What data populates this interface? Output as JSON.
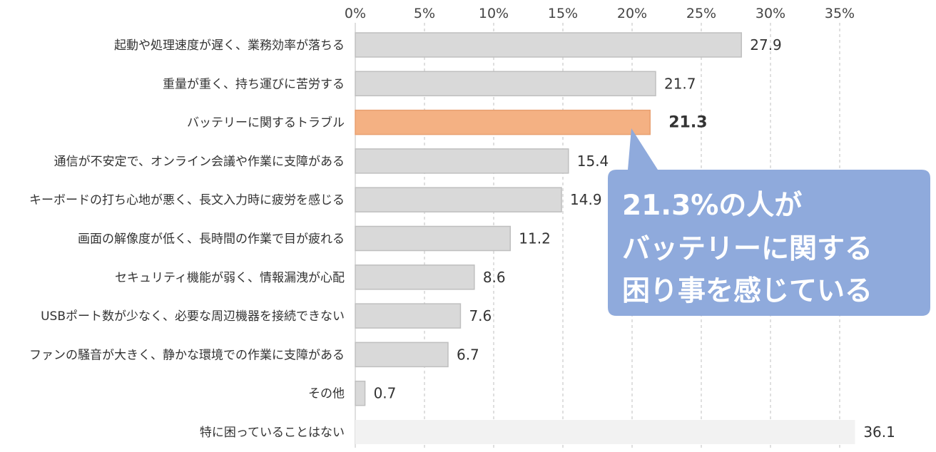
{
  "chart_data": {
    "type": "bar",
    "orientation": "horizontal",
    "categories": [
      "起動や処理速度が遅く、業務効率が落ちる",
      "重量が重く、持ち運びに苦労する",
      "バッテリーに関するトラブル",
      "通信が不安定で、オンライン会議や作業に支障がある",
      "キーボードの打ち心地が悪く、長文入力時に疲労を感じる",
      "画面の解像度が低く、長時間の作業で目が疲れる",
      "セキュリティ機能が弱く、情報漏洩が心配",
      "USBポート数が少なく、必要な周辺機器を接続できない",
      "ファンの騒音が大きく、静かな環境での作業に支障がある",
      "その他",
      "特に困っていることはない"
    ],
    "values": [
      27.9,
      21.7,
      21.3,
      15.4,
      14.9,
      11.2,
      8.6,
      7.6,
      6.7,
      0.7,
      36.1
    ],
    "value_labels": [
      "27.9",
      "21.7",
      "21.3",
      "15.4",
      "14.9",
      "11.2",
      "8.6",
      "7.6",
      "6.7",
      "0.7",
      "36.1"
    ],
    "highlight_index": 2,
    "xlim": [
      0,
      36.1
    ],
    "x_ticks": [
      0,
      5,
      10,
      15,
      20,
      25,
      30,
      35
    ],
    "x_tick_labels": [
      "0%",
      "5%",
      "10%",
      "15%",
      "20%",
      "25%",
      "30%",
      "35%"
    ],
    "x_axis_position": "top",
    "grid": "vertical-dashed",
    "title": "",
    "xlabel": "",
    "ylabel": "",
    "colors": {
      "bar": "#d9d9d9",
      "bar_border": "#bfbfbf",
      "highlight_bar": "#f4b183",
      "highlight_border": "#e8a070",
      "highlight_label": "#e07b2e",
      "last_bar": "#f2f2f2",
      "grid": "#bfbfbf",
      "callout": "#8faadc",
      "callout_text": "#ffffff"
    }
  },
  "callout": {
    "lines": [
      "21.3%の人が",
      "バッテリーに関する",
      "困り事を感じている"
    ]
  }
}
